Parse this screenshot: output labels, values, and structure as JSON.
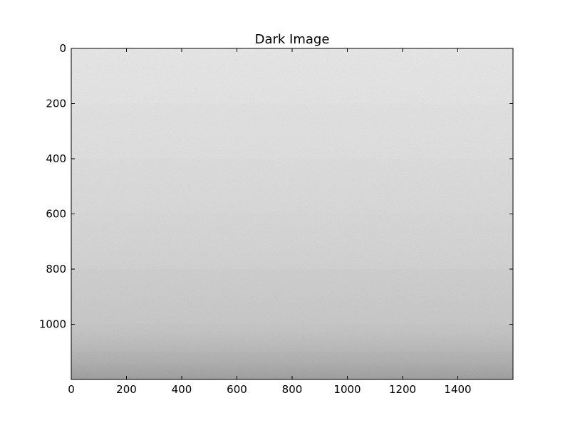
{
  "chart_data": {
    "type": "heatmap",
    "title": "Dark Image",
    "xlabel": "",
    "ylabel": "",
    "image_width": 1600,
    "image_height": 1200,
    "xlim": [
      0,
      1600
    ],
    "ylim": [
      1200,
      0
    ],
    "x_ticks": [
      0,
      200,
      400,
      600,
      800,
      1000,
      1200,
      1400
    ],
    "y_ticks": [
      0,
      200,
      400,
      600,
      800,
      1000
    ],
    "colormap": "gray_r",
    "grid": false,
    "intensity_profile": {
      "rows": [
        0,
        200,
        400,
        600,
        800,
        1000,
        1100,
        1200
      ],
      "mean_level": [
        0.08,
        0.09,
        0.12,
        0.15,
        0.18,
        0.22,
        0.27,
        0.35
      ]
    }
  }
}
